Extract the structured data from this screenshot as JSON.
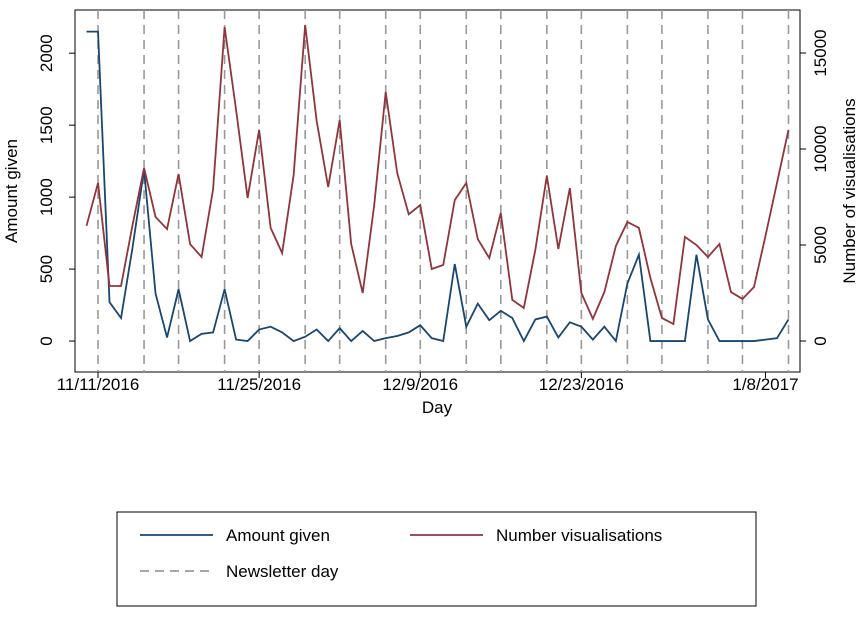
{
  "chart_data": {
    "type": "line",
    "x_label": "Day",
    "y_label": "Amount given",
    "y2_label": "Number of visualisations",
    "x": [
      "11/10/2016",
      "11/11/2016",
      "11/12/2016",
      "11/13/2016",
      "11/14/2016",
      "11/15/2016",
      "11/16/2016",
      "11/17/2016",
      "11/18/2016",
      "11/19/2016",
      "11/20/2016",
      "11/21/2016",
      "11/22/2016",
      "11/23/2016",
      "11/24/2016",
      "11/25/2016",
      "11/26/2016",
      "11/27/2016",
      "11/28/2016",
      "11/29/2016",
      "11/30/2016",
      "12/1/2016",
      "12/2/2016",
      "12/3/2016",
      "12/4/2016",
      "12/5/2016",
      "12/6/2016",
      "12/7/2016",
      "12/8/2016",
      "12/9/2016",
      "12/10/2016",
      "12/11/2016",
      "12/12/2016",
      "12/13/2016",
      "12/14/2016",
      "12/15/2016",
      "12/16/2016",
      "12/17/2016",
      "12/18/2016",
      "12/19/2016",
      "12/20/2016",
      "12/21/2016",
      "12/22/2016",
      "12/23/2016",
      "12/24/2016",
      "12/25/2016",
      "12/26/2016",
      "12/27/2016",
      "12/28/2016",
      "12/29/2016",
      "12/30/2016",
      "12/31/2016",
      "1/1/2017",
      "1/2/2017",
      "1/3/2017",
      "1/4/2017",
      "1/5/2017",
      "1/6/2017",
      "1/7/2017",
      "1/8/2017",
      "1/9/2017",
      "1/10/2017"
    ],
    "series": [
      {
        "name": "Amount given",
        "color": "#1a476f",
        "values": [
          2150,
          2150,
          270,
          160,
          650,
          1190,
          330,
          25,
          360,
          0,
          50,
          60,
          360,
          10,
          0,
          80,
          100,
          60,
          0,
          30,
          80,
          0,
          90,
          0,
          70,
          0,
          20,
          35,
          60,
          110,
          20,
          0,
          535,
          100,
          260,
          145,
          210,
          160,
          0,
          150,
          170,
          25,
          130,
          100,
          10,
          100,
          0,
          400,
          600,
          0,
          0,
          0,
          0,
          600,
          150,
          0,
          0,
          0,
          0,
          10,
          20,
          150
        ]
      },
      {
        "name": "Number visualisations",
        "color": "#90353b",
        "axis": "y2",
        "values": [
          6000,
          8230,
          2865,
          2865,
          6040,
          9010,
          6460,
          5830,
          8700,
          5050,
          4375,
          7900,
          16350,
          12030,
          7450,
          11000,
          5890,
          4580,
          8650,
          16460,
          11460,
          8020,
          11500,
          5050,
          2500,
          7080,
          12970,
          8750,
          6600,
          7080,
          3750,
          3960,
          7340,
          8230,
          5310,
          4320,
          6670,
          2140,
          1720,
          4740,
          8600,
          4790,
          7970,
          2500,
          1150,
          2550,
          4950,
          6200,
          5890,
          3280,
          1200,
          885,
          5420,
          5000,
          4375,
          5050,
          2550,
          2190,
          2810,
          5470,
          8230,
          11000
        ]
      }
    ],
    "newsletter": {
      "name": "Newsletter day",
      "color": "#999999",
      "x": [
        "11/11/2016",
        "11/15/2016",
        "11/18/2016",
        "11/22/2016",
        "11/25/2016",
        "11/29/2016",
        "12/2/2016",
        "12/6/2016",
        "12/9/2016",
        "12/13/2016",
        "12/16/2016",
        "12/20/2016",
        "12/23/2016",
        "12/27/2016",
        "12/30/2016",
        "1/3/2017",
        "1/6/2017",
        "1/10/2017"
      ]
    },
    "xlim": [
      "11/9/2016",
      "1/11/2017"
    ],
    "xticks": [
      "11/11/2016",
      "11/25/2016",
      "12/9/2016",
      "12/23/2016",
      "1/8/2017"
    ],
    "ylim": [
      -215,
      2300
    ],
    "yticks": [
      0,
      500,
      1000,
      1500,
      2000
    ],
    "y2lim": [
      -1615,
      17240
    ],
    "y2ticks": [
      0,
      5000,
      10000,
      15000
    ],
    "grid": false
  }
}
